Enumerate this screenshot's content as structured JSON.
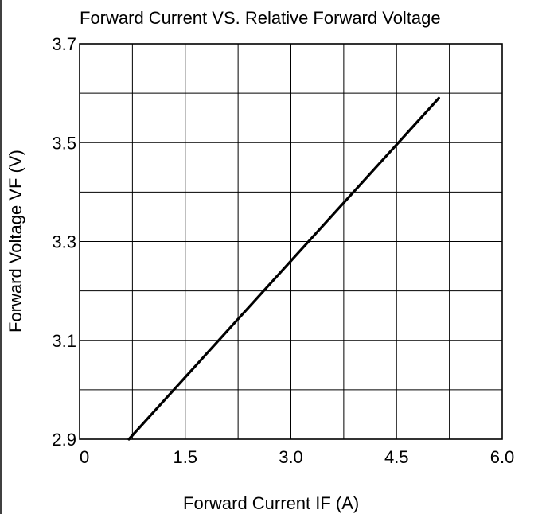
{
  "chart_data": {
    "type": "line",
    "title": "Forward Current VS.  Relative Forward Voltage",
    "xlabel": "Forward Current IF  (A)",
    "ylabel": "Forward  Voltage  VF  (V)",
    "xlim": [
      0,
      6.0
    ],
    "ylim": [
      2.9,
      3.7
    ],
    "x_ticks": [
      "0",
      "1.5",
      "3.0",
      "4.5",
      "6.0"
    ],
    "x_tick_values": [
      0,
      1.5,
      3.0,
      4.5,
      6.0
    ],
    "y_ticks": [
      "3.7",
      "3.5",
      "3.3",
      "3.1",
      "2.9"
    ],
    "y_tick_values": [
      3.7,
      3.5,
      3.3,
      3.1,
      2.9
    ],
    "grid": true,
    "x_grid_step": 0.75,
    "y_grid_step": 0.1,
    "series": [
      {
        "x": [
          0.7,
          5.1
        ],
        "y": [
          2.9,
          3.59
        ]
      }
    ],
    "colors": {
      "line": "#000000",
      "grid": "#000000",
      "background": "#ffffff"
    }
  }
}
